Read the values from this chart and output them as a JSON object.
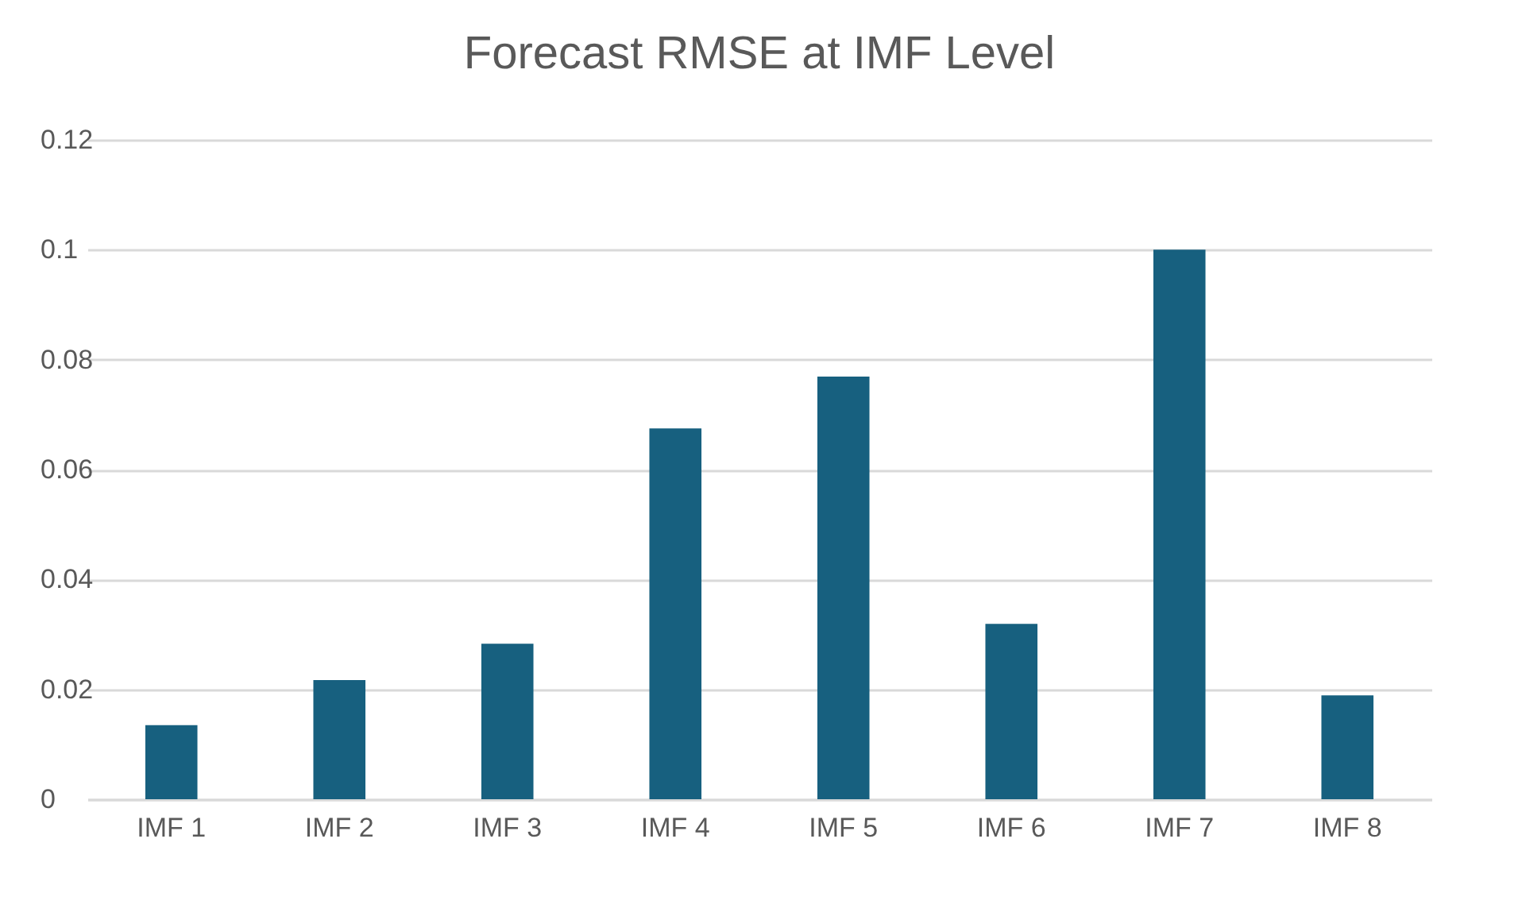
{
  "chart_data": {
    "type": "bar",
    "title": "Forecast RMSE at IMF Level",
    "categories": [
      "IMF 1",
      "IMF 2",
      "IMF 3",
      "IMF 4",
      "IMF 5",
      "IMF 6",
      "IMF 7",
      "IMF 8"
    ],
    "values": [
      0.0135,
      0.0217,
      0.0283,
      0.0675,
      0.0769,
      0.0319,
      0.1,
      0.0189
    ],
    "color": "#17607f",
    "ylim": [
      0,
      0.12
    ],
    "yticks": [
      0,
      0.02,
      0.04,
      0.06,
      0.08,
      0.1,
      0.12
    ],
    "grid": "y"
  }
}
